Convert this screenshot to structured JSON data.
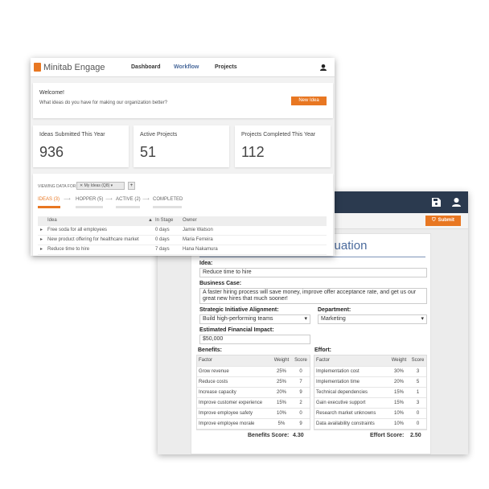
{
  "main_window": {
    "brand": "Minitab Engage",
    "nav": [
      "Dashboard",
      "Workflow",
      "Projects"
    ],
    "active_nav": "Workflow",
    "welcome": {
      "title": "Welcome!",
      "subtitle": "What ideas do you have for making our organization better?",
      "button": "New Idea"
    },
    "stats": [
      {
        "label": "Ideas Submitted This Year",
        "value": "936"
      },
      {
        "label": "Active Projects",
        "value": "51"
      },
      {
        "label": "Projects Completed This Year",
        "value": "112"
      }
    ],
    "viewing_label": "VIEWING DATA FOR:",
    "filter_value": "My Ideas (Q8)",
    "stages": [
      "IDEAS (3)",
      "HOPPER (5)",
      "ACTIVE (2)",
      "COMPLETED"
    ],
    "table_headers": [
      "Idea",
      "In Stage",
      "Owner"
    ],
    "rows": [
      [
        "Free soda for all employees",
        "0 days",
        "Jamie Watson"
      ],
      [
        "New product offering for healthcare market",
        "0 days",
        "Maria Ferreira"
      ],
      [
        "Reduce time to hire",
        "7 days",
        "Hana Nakamura"
      ]
    ]
  },
  "form_window": {
    "submit": "Submit",
    "title": "Idea Evaluation",
    "idea_label": "Idea:",
    "idea_value": "Reduce time to hire",
    "case_label": "Business Case:",
    "case_value": "A faster hiring process will save money, improve offer acceptance rate, and get us our great new hires that much sooner!",
    "strategic_label": "Strategic Initiative Alignment:",
    "strategic_value": "Build high-performing teams",
    "dept_label": "Department:",
    "dept_value": "Marketing",
    "impact_label": "Estimated Financial Impact:",
    "impact_value": "$50,000",
    "benefits": {
      "label": "Benefits:",
      "headers": [
        "Factor",
        "Weight",
        "Score"
      ],
      "rows": [
        [
          "Grow revenue",
          "25%",
          "0"
        ],
        [
          "Reduce costs",
          "25%",
          "7"
        ],
        [
          "Increase capacity",
          "20%",
          "9"
        ],
        [
          "Improve customer experience",
          "15%",
          "2"
        ],
        [
          "Improve employee safety",
          "10%",
          "0"
        ],
        [
          "Improve employee morale",
          "5%",
          "9"
        ]
      ],
      "score_label": "Benefits Score:",
      "score": "4.30"
    },
    "effort": {
      "label": "Effort:",
      "headers": [
        "Factor",
        "Weight",
        "Score"
      ],
      "rows": [
        [
          "Implementation cost",
          "30%",
          "3"
        ],
        [
          "Implementation time",
          "20%",
          "5"
        ],
        [
          "Technical dependencies",
          "15%",
          "1"
        ],
        [
          "Gain executive support",
          "15%",
          "3"
        ],
        [
          "Research market unknowns",
          "10%",
          "0"
        ],
        [
          "Data availability constraints",
          "10%",
          "0"
        ]
      ],
      "score_label": "Effort Score:",
      "score": "2.50"
    }
  },
  "colors": {
    "accent": "#e87722",
    "header_dark": "#2b3a4f",
    "title_blue": "#4a6a9c"
  }
}
